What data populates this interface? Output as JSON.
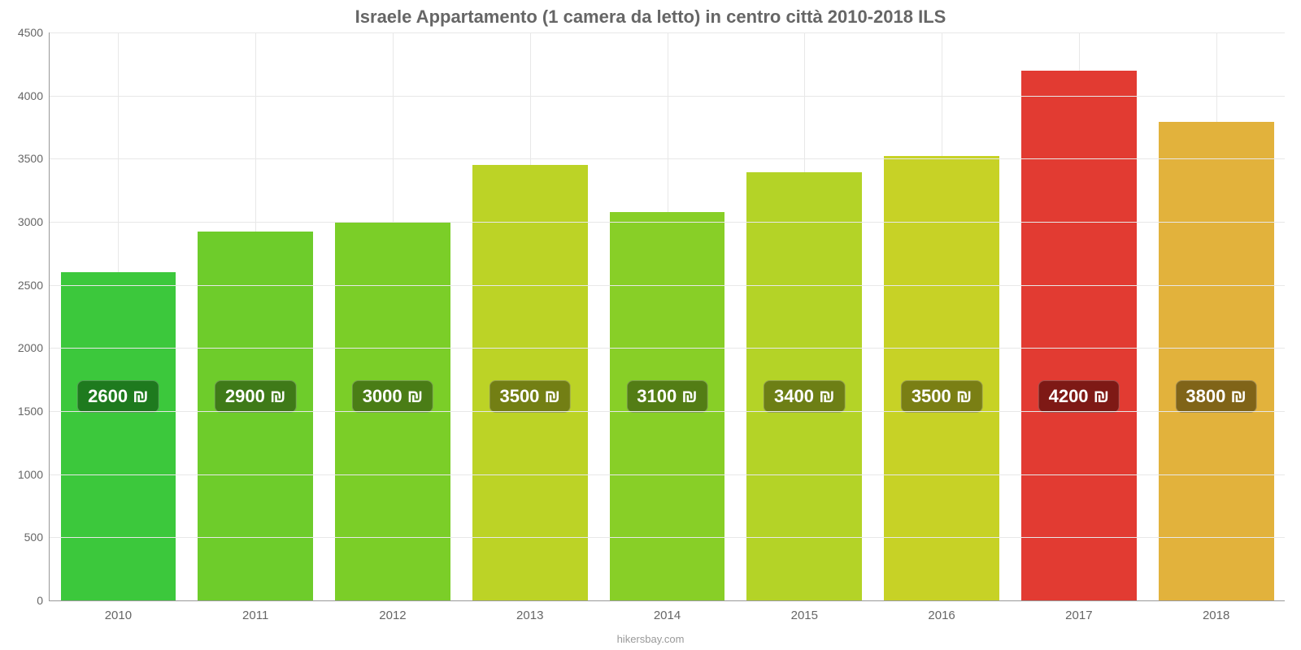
{
  "chart": {
    "type": "bar",
    "title": "Israele Appartamento (1 camera da letto) in centro città 2010-2018 ILS",
    "title_fontsize": 22,
    "title_color": "#666666",
    "credit": "hikersbay.com",
    "credit_color": "#999999",
    "credit_fontsize": 13,
    "background_color": "#ffffff",
    "grid_color": "#e8e8e8",
    "axis_color": "#999999",
    "tick_label_color": "#666666",
    "tick_fontsize": 14,
    "ylim": [
      0,
      4500
    ],
    "ytick_step": 500,
    "yticks": [
      0,
      500,
      1000,
      1500,
      2000,
      2500,
      3000,
      3500,
      4000,
      4500
    ],
    "bar_width_ratio": 0.84,
    "value_badge": {
      "fontsize": 22,
      "text_color": "#ffffff",
      "border_radius": 8,
      "padding": "6px 12px",
      "vertical_center_value": 1600
    },
    "categories": [
      "2010",
      "2011",
      "2012",
      "2013",
      "2014",
      "2015",
      "2016",
      "2017",
      "2018"
    ],
    "bars": [
      {
        "year": "2010",
        "value": 2600,
        "label": "2600 ₪",
        "fill": "#3cc83c",
        "badge_bg": "#1e7a1e"
      },
      {
        "year": "2011",
        "value": 2920,
        "label": "2900 ₪",
        "fill": "#6ecc2b",
        "badge_bg": "#3f7a18"
      },
      {
        "year": "2012",
        "value": 3000,
        "label": "3000 ₪",
        "fill": "#7bce28",
        "badge_bg": "#4a7d16"
      },
      {
        "year": "2013",
        "value": 3450,
        "label": "3500 ₪",
        "fill": "#bcd326",
        "badge_bg": "#737f14"
      },
      {
        "year": "2014",
        "value": 3080,
        "label": "3100 ₪",
        "fill": "#88cf27",
        "badge_bg": "#537d15"
      },
      {
        "year": "2015",
        "value": 3390,
        "label": "3400 ₪",
        "fill": "#b4d327",
        "badge_bg": "#6d7f15"
      },
      {
        "year": "2016",
        "value": 3520,
        "label": "3500 ₪",
        "fill": "#c7d226",
        "badge_bg": "#7a7f14"
      },
      {
        "year": "2017",
        "value": 4200,
        "label": "4200 ₪",
        "fill": "#e23b32",
        "badge_bg": "#7e1915"
      },
      {
        "year": "2018",
        "value": 3790,
        "label": "3800 ₪",
        "fill": "#e2b23c",
        "badge_bg": "#806418"
      }
    ]
  }
}
